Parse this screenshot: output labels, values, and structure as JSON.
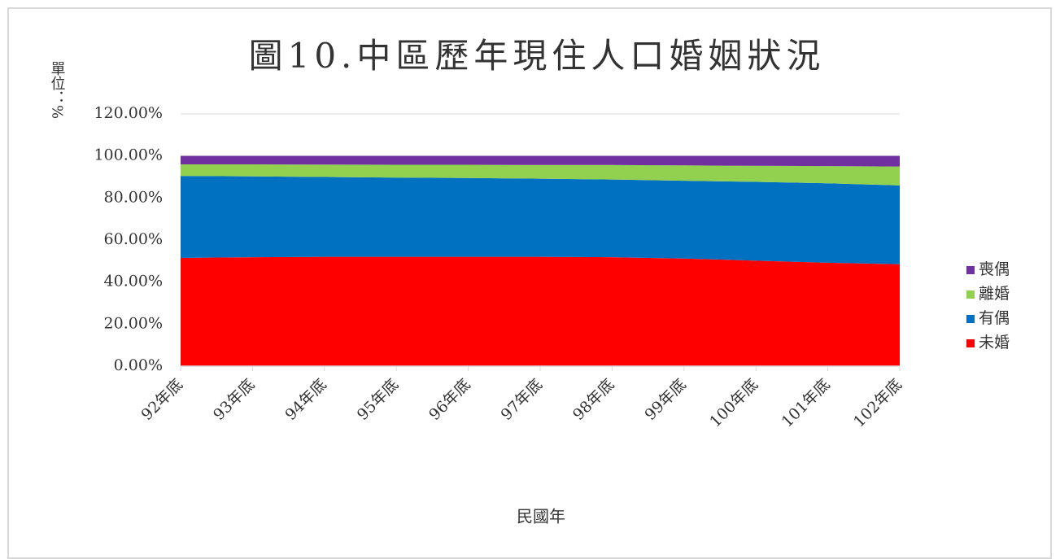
{
  "chart_data": {
    "type": "stacked_area",
    "title": "圖10.中區歷年現住人口婚姻狀況",
    "y_label": "單位：%",
    "x_label": "民國年",
    "categories": [
      "92年底",
      "93年底",
      "94年底",
      "95年底",
      "96年底",
      "97年底",
      "98年底",
      "99年底",
      "100年底",
      "101年底",
      "102年底"
    ],
    "series": [
      {
        "name": "未婚",
        "color": "#ff0000",
        "values": [
          51.5,
          51.8,
          52.0,
          52.0,
          52.0,
          52.0,
          51.8,
          51.2,
          50.2,
          49.2,
          48.5
        ]
      },
      {
        "name": "有偶",
        "color": "#0070c0",
        "values": [
          39.0,
          38.5,
          38.0,
          37.7,
          37.5,
          37.2,
          37.0,
          37.0,
          37.5,
          37.8,
          37.5
        ]
      },
      {
        "name": "離婚",
        "color": "#92d050",
        "values": [
          5.5,
          5.7,
          5.9,
          6.1,
          6.3,
          6.5,
          6.9,
          7.3,
          7.6,
          8.2,
          9.0
        ]
      },
      {
        "name": "喪偶",
        "color": "#7030a0",
        "values": [
          4.0,
          4.0,
          4.1,
          4.2,
          4.2,
          4.3,
          4.3,
          4.5,
          4.7,
          4.8,
          5.0
        ]
      }
    ],
    "ylim": [
      0,
      120
    ],
    "yticks": [
      {
        "value": 0,
        "label": "0.00%"
      },
      {
        "value": 20,
        "label": "20.00%"
      },
      {
        "value": 40,
        "label": "40.00%"
      },
      {
        "value": 60,
        "label": "60.00%"
      },
      {
        "value": 80,
        "label": "80.00%"
      },
      {
        "value": 100,
        "label": "100.00%"
      },
      {
        "value": 120,
        "label": "120.00%"
      }
    ],
    "grid": true,
    "legend": "right"
  }
}
